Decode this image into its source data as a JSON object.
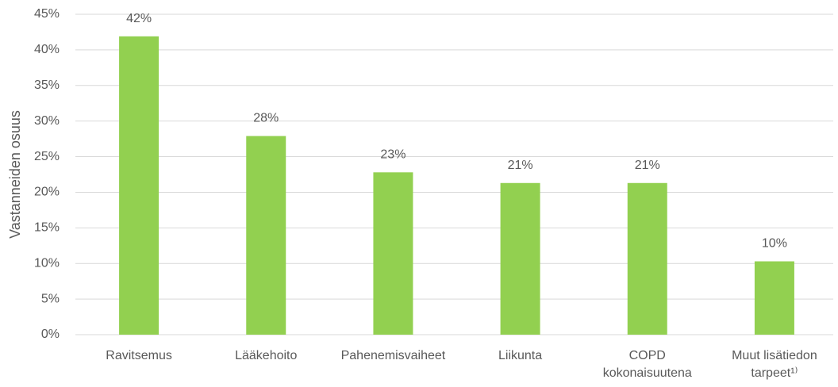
{
  "chart_data": {
    "type": "bar",
    "y_label": "Vastanneiden osuus",
    "categories": [
      [
        "Ravitsemus"
      ],
      [
        "Lääkehoito"
      ],
      [
        "Pahenemisvaiheet"
      ],
      [
        "Liikunta"
      ],
      [
        "COPD",
        "kokonaisuutena"
      ],
      [
        "Muut lisätiedon",
        "tarpeet¹⁾"
      ]
    ],
    "values": [
      41.9,
      27.9,
      22.8,
      21.3,
      21.3,
      10.3
    ],
    "value_labels": [
      "42%",
      "28%",
      "23%",
      "21%",
      "21%",
      "10%"
    ],
    "color": "#92d050",
    "ylim": [
      0,
      45
    ],
    "yticks": [
      {
        "value": 0,
        "label": "0%"
      },
      {
        "value": 5,
        "label": "5%"
      },
      {
        "value": 10,
        "label": "10%"
      },
      {
        "value": 15,
        "label": "15%"
      },
      {
        "value": 20,
        "label": "20%"
      },
      {
        "value": 25,
        "label": "25%"
      },
      {
        "value": 30,
        "label": "30%"
      },
      {
        "value": 35,
        "label": "35%"
      },
      {
        "value": 40,
        "label": "40%"
      },
      {
        "value": 45,
        "label": "45%"
      }
    ],
    "grid": true
  }
}
